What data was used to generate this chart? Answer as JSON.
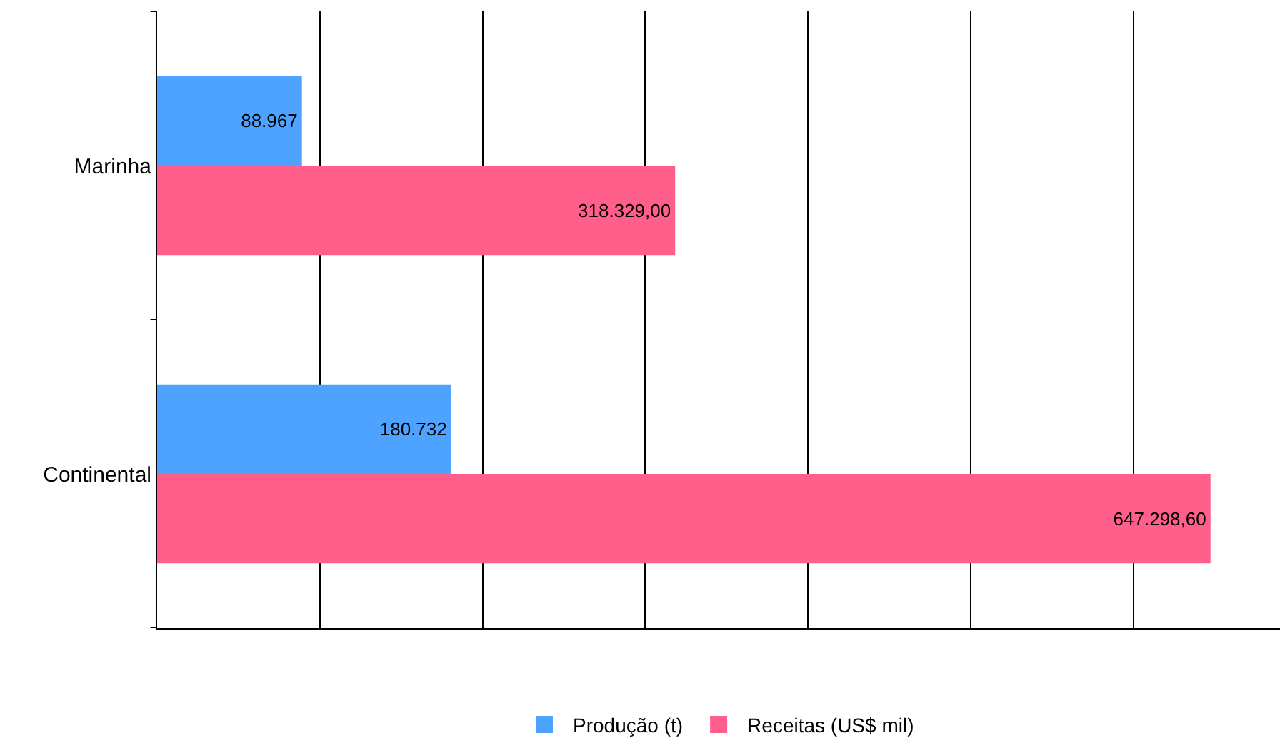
{
  "chart_data": {
    "type": "bar",
    "orientation": "horizontal",
    "categories": [
      "Marinha",
      "Continental"
    ],
    "series": [
      {
        "name": "Produção (t)",
        "color": "#4da3ff",
        "values": [
          88967,
          180732
        ],
        "value_labels": [
          "88.967",
          "180.732"
        ]
      },
      {
        "name": "Receitas (US$ mil)",
        "color": "#ff5f8a",
        "values": [
          318329,
          647298.6
        ],
        "value_labels": [
          "318.329,00",
          "647.298,60"
        ]
      }
    ],
    "xlim": [
      0,
      690000
    ],
    "xticks": [
      {
        "value": 0,
        "label": null
      },
      {
        "value": 100000,
        "label": null
      },
      {
        "value": 200000,
        "label": null
      },
      {
        "value": 300000,
        "label": null
      },
      {
        "value": 400000,
        "label": null
      },
      {
        "value": 500000,
        "label": null
      },
      {
        "value": 600000,
        "label": null
      }
    ],
    "grid": "x",
    "legend": "bottom",
    "tick_labels": "y"
  }
}
